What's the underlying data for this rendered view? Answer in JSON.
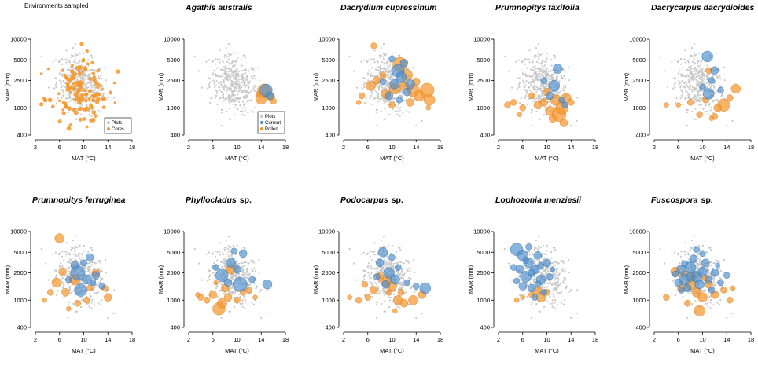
{
  "colors": {
    "plots": "#c8c8c8",
    "cores": "#f5962a",
    "pollen": "#f5962a",
    "current": "#4a8ccc"
  },
  "chart_data": {
    "type": "scatter",
    "xlabel": "MAT (°C)",
    "ylabel": "MAR (mm)",
    "xticks": [
      "2",
      "6",
      "10",
      "14",
      "18"
    ],
    "yticks": [
      "400",
      "1000",
      "2500",
      "5000",
      "10000"
    ],
    "xlim": [
      2,
      18
    ],
    "ylim": [
      400,
      10000
    ],
    "yscale": "log",
    "panels": [
      {
        "id": "environments",
        "title": "Environments sampled",
        "italic": false,
        "legend": [
          {
            "label": "Plots",
            "key": "plots"
          },
          {
            "label": "Cores",
            "key": "cores"
          }
        ],
        "current": [],
        "pollen": [],
        "cores": "many",
        "plots_present": true
      },
      {
        "id": "agathis",
        "title": "Agathis australis",
        "italic": true,
        "legend": [
          {
            "label": "Plots",
            "key": "plots"
          },
          {
            "label": "Current",
            "key": "current"
          },
          {
            "label": "Pollen",
            "key": "pollen"
          }
        ],
        "current": [
          [
            14.8,
            1800,
            8
          ],
          [
            15.4,
            1500,
            5
          ]
        ],
        "pollen": [
          [
            14.5,
            1750,
            9
          ],
          [
            14.0,
            1350,
            7
          ],
          [
            15.6,
            1450,
            5
          ],
          [
            16.0,
            1250,
            4
          ],
          [
            13.5,
            1600,
            3
          ]
        ]
      },
      {
        "id": "dacrydium",
        "title": "Dacrydium cupressinum",
        "italic": true,
        "current": [
          [
            11.0,
            3500,
            8
          ],
          [
            10.4,
            2200,
            6
          ],
          [
            11.5,
            2800,
            7
          ],
          [
            12.0,
            4500,
            5
          ],
          [
            9.5,
            1500,
            5
          ],
          [
            13.0,
            2200,
            6
          ],
          [
            10.0,
            5200,
            4
          ],
          [
            12.5,
            1700,
            5
          ],
          [
            8.5,
            2400,
            4
          ],
          [
            11.2,
            1300,
            4
          ]
        ],
        "pollen": [
          [
            11.3,
            4300,
            9
          ],
          [
            12.5,
            3000,
            7
          ],
          [
            13.5,
            1800,
            8
          ],
          [
            14.5,
            1500,
            7
          ],
          [
            15.8,
            1800,
            9
          ],
          [
            16.2,
            1300,
            7
          ],
          [
            6.5,
            2100,
            6
          ],
          [
            7.5,
            2500,
            5
          ],
          [
            9.0,
            1600,
            6
          ],
          [
            10.5,
            1900,
            7
          ],
          [
            12.0,
            2100,
            6
          ],
          [
            8.5,
            3000,
            4
          ],
          [
            14.0,
            2400,
            5
          ],
          [
            5.0,
            1500,
            4
          ],
          [
            10.0,
            1100,
            4
          ],
          [
            13.0,
            1200,
            5
          ],
          [
            7.0,
            8000,
            4
          ],
          [
            16.0,
            1000,
            3
          ],
          [
            4.5,
            1200,
            3
          ]
        ]
      },
      {
        "id": "prumnopitys_t",
        "title": "Prumnopitys taxifolia",
        "italic": true,
        "current": [
          [
            11.8,
            3700,
            6
          ],
          [
            11.2,
            2100,
            7
          ],
          [
            10.5,
            1500,
            5
          ],
          [
            12.5,
            1300,
            4
          ],
          [
            9.5,
            2500,
            4
          ],
          [
            13.0,
            1100,
            4
          ]
        ],
        "pollen": [
          [
            12.0,
            800,
            9
          ],
          [
            11.5,
            1300,
            7
          ],
          [
            12.5,
            1000,
            8
          ],
          [
            10.5,
            900,
            6
          ],
          [
            13.2,
            1400,
            6
          ],
          [
            11.0,
            700,
            5
          ],
          [
            8.5,
            1100,
            5
          ],
          [
            6.0,
            1000,
            4
          ],
          [
            4.5,
            1200,
            4
          ],
          [
            9.5,
            1200,
            5
          ],
          [
            10.0,
            1700,
            5
          ],
          [
            7.5,
            1500,
            4
          ],
          [
            14.0,
            1200,
            4
          ],
          [
            12.8,
            600,
            5
          ],
          [
            3.5,
            1100,
            4
          ],
          [
            5.5,
            800,
            3
          ]
        ]
      },
      {
        "id": "dacrycarpus",
        "title": "Dacrycarpus dacrydioides",
        "italic": true,
        "current": [
          [
            10.8,
            5600,
            7
          ],
          [
            11.0,
            1600,
            7
          ],
          [
            12.0,
            3500,
            5
          ],
          [
            11.5,
            2500,
            4
          ],
          [
            10.0,
            2000,
            4
          ],
          [
            13.0,
            1800,
            4
          ]
        ],
        "pollen": [
          [
            15.5,
            1900,
            6
          ],
          [
            13.5,
            1100,
            8
          ],
          [
            12.5,
            1000,
            5
          ],
          [
            11.0,
            3500,
            4
          ],
          [
            9.5,
            800,
            4
          ],
          [
            8.0,
            1200,
            4
          ],
          [
            12.0,
            750,
            4
          ],
          [
            14.5,
            1400,
            4
          ],
          [
            6.0,
            1100,
            3
          ],
          [
            10.5,
            1300,
            4
          ],
          [
            11.5,
            700,
            3
          ],
          [
            4.0,
            1100,
            3
          ]
        ]
      },
      {
        "id": "prumnopitys_f",
        "title": "Prumnopitys ferruginea",
        "italic": true,
        "current": [
          [
            9.5,
            1400,
            8
          ],
          [
            9.0,
            2500,
            9
          ],
          [
            10.5,
            2000,
            6
          ],
          [
            11.0,
            4200,
            5
          ],
          [
            12.0,
            2300,
            5
          ],
          [
            8.5,
            3200,
            5
          ],
          [
            10.0,
            3500,
            4
          ],
          [
            11.5,
            1800,
            4
          ],
          [
            13.0,
            1600,
            4
          ],
          [
            7.5,
            2000,
            4
          ]
        ],
        "pollen": [
          [
            6.0,
            8000,
            6
          ],
          [
            5.5,
            1800,
            6
          ],
          [
            8.5,
            2000,
            7
          ],
          [
            7.0,
            1300,
            5
          ],
          [
            12.0,
            2500,
            5
          ],
          [
            14.0,
            1100,
            5
          ],
          [
            10.5,
            1000,
            4
          ],
          [
            9.0,
            900,
            4
          ],
          [
            4.5,
            1300,
            4
          ],
          [
            6.5,
            2600,
            5
          ],
          [
            11.0,
            1500,
            4
          ],
          [
            3.5,
            1000,
            3
          ],
          [
            7.5,
            750,
            3
          ],
          [
            13.5,
            1500,
            4
          ]
        ]
      },
      {
        "id": "phyllocladus",
        "title": "Phyllocladus",
        "suffix": "sp.",
        "italic": true,
        "current": [
          [
            7.5,
            2300,
            8
          ],
          [
            10.5,
            1700,
            9
          ],
          [
            15.0,
            1700,
            6
          ],
          [
            9.0,
            3500,
            6
          ],
          [
            11.0,
            4800,
            5
          ],
          [
            8.5,
            1800,
            5
          ],
          [
            10.0,
            2800,
            5
          ],
          [
            12.5,
            2000,
            4
          ],
          [
            6.5,
            3000,
            4
          ],
          [
            9.5,
            5200,
            4
          ]
        ],
        "pollen": [
          [
            7.0,
            750,
            8
          ],
          [
            7.5,
            900,
            6
          ],
          [
            9.0,
            2800,
            6
          ],
          [
            8.0,
            1500,
            5
          ],
          [
            6.0,
            1200,
            5
          ],
          [
            5.0,
            1000,
            4
          ],
          [
            11.0,
            1300,
            4
          ],
          [
            4.0,
            1100,
            4
          ],
          [
            8.5,
            1100,
            5
          ],
          [
            10.0,
            1000,
            4
          ],
          [
            12.0,
            1400,
            4
          ],
          [
            3.5,
            1200,
            3
          ],
          [
            6.5,
            1800,
            3
          ],
          [
            13.0,
            1100,
            3
          ]
        ]
      },
      {
        "id": "podocarpus",
        "title": "Podocarpus",
        "suffix": "sp.",
        "italic": true,
        "current": [
          [
            8.5,
            5000,
            6
          ],
          [
            15.5,
            1500,
            7
          ],
          [
            9.5,
            2500,
            7
          ],
          [
            10.5,
            2000,
            6
          ],
          [
            8.0,
            3500,
            5
          ],
          [
            9.0,
            1700,
            5
          ],
          [
            11.0,
            3000,
            4
          ],
          [
            12.5,
            1800,
            4
          ],
          [
            7.5,
            2200,
            4
          ],
          [
            10.0,
            4200,
            4
          ],
          [
            14.0,
            1600,
            4
          ]
        ],
        "pollen": [
          [
            9.0,
            1900,
            7
          ],
          [
            10.0,
            1600,
            6
          ],
          [
            11.0,
            1000,
            6
          ],
          [
            13.5,
            1000,
            6
          ],
          [
            12.0,
            900,
            5
          ],
          [
            7.0,
            1400,
            5
          ],
          [
            6.0,
            1100,
            4
          ],
          [
            8.0,
            2200,
            5
          ],
          [
            15.0,
            1200,
            5
          ],
          [
            4.5,
            1000,
            4
          ],
          [
            9.5,
            1300,
            4
          ],
          [
            5.5,
            1700,
            4
          ],
          [
            11.5,
            1300,
            4
          ],
          [
            3.0,
            1100,
            3
          ],
          [
            10.5,
            700,
            3
          ]
        ]
      },
      {
        "id": "lophozonia",
        "title": "Lophozonia menziesii",
        "italic": true,
        "current": [
          [
            5.0,
            5500,
            8
          ],
          [
            6.0,
            4500,
            7
          ],
          [
            7.0,
            3500,
            6
          ],
          [
            6.5,
            2200,
            7
          ],
          [
            8.0,
            2800,
            6
          ],
          [
            9.0,
            2000,
            6
          ],
          [
            7.5,
            1500,
            5
          ],
          [
            10.0,
            3500,
            5
          ],
          [
            8.5,
            4500,
            5
          ],
          [
            5.5,
            2800,
            5
          ],
          [
            6.0,
            1600,
            5
          ],
          [
            9.5,
            1300,
            4
          ],
          [
            7.0,
            6000,
            4
          ],
          [
            4.5,
            3000,
            4
          ],
          [
            10.5,
            2200,
            4
          ],
          [
            8.0,
            1100,
            4
          ],
          [
            5.0,
            1900,
            4
          ],
          [
            9.0,
            3200,
            4
          ],
          [
            6.5,
            3800,
            4
          ],
          [
            11.0,
            2800,
            3
          ],
          [
            7.5,
            2500,
            5
          ],
          [
            8.5,
            1700,
            4
          ]
        ],
        "pollen": [
          [
            9.0,
            1100,
            6
          ],
          [
            8.5,
            1400,
            5
          ],
          [
            7.5,
            1200,
            4
          ],
          [
            10.0,
            1300,
            4
          ],
          [
            6.0,
            1100,
            3
          ],
          [
            5.0,
            1000,
            3
          ]
        ]
      },
      {
        "id": "fuscospora",
        "title": "Fuscospora",
        "suffix": "sp.",
        "italic": true,
        "current": [
          [
            8.0,
            3000,
            7
          ],
          [
            9.0,
            2200,
            7
          ],
          [
            7.0,
            2000,
            7
          ],
          [
            10.0,
            2600,
            6
          ],
          [
            6.5,
            2800,
            6
          ],
          [
            9.5,
            1700,
            6
          ],
          [
            8.5,
            4000,
            5
          ],
          [
            11.0,
            2000,
            5
          ],
          [
            7.5,
            1500,
            5
          ],
          [
            12.0,
            2500,
            5
          ],
          [
            10.5,
            3500,
            5
          ],
          [
            6.0,
            1800,
            5
          ],
          [
            9.0,
            5500,
            4
          ],
          [
            13.0,
            1800,
            4
          ],
          [
            5.5,
            2400,
            4
          ],
          [
            8.0,
            2200,
            6
          ],
          [
            7.0,
            3400,
            4
          ],
          [
            11.5,
            1400,
            4
          ],
          [
            10.0,
            4800,
            4
          ],
          [
            14.0,
            2300,
            4
          ],
          [
            6.5,
            1400,
            4
          ],
          [
            12.5,
            3200,
            3
          ]
        ],
        "pollen": [
          [
            9.5,
            700,
            7
          ],
          [
            5.5,
            2600,
            6
          ],
          [
            8.0,
            1700,
            7
          ],
          [
            9.0,
            1300,
            6
          ],
          [
            10.0,
            1100,
            6
          ],
          [
            7.0,
            2400,
            5
          ],
          [
            11.0,
            1700,
            5
          ],
          [
            6.5,
            1500,
            5
          ],
          [
            12.0,
            1200,
            5
          ],
          [
            13.5,
            1400,
            4
          ],
          [
            8.5,
            2300,
            5
          ],
          [
            10.5,
            2100,
            4
          ],
          [
            4.0,
            1100,
            4
          ],
          [
            14.5,
            1000,
            4
          ],
          [
            7.5,
            900,
            4
          ],
          [
            15.0,
            1500,
            3
          ]
        ]
      }
    ]
  }
}
